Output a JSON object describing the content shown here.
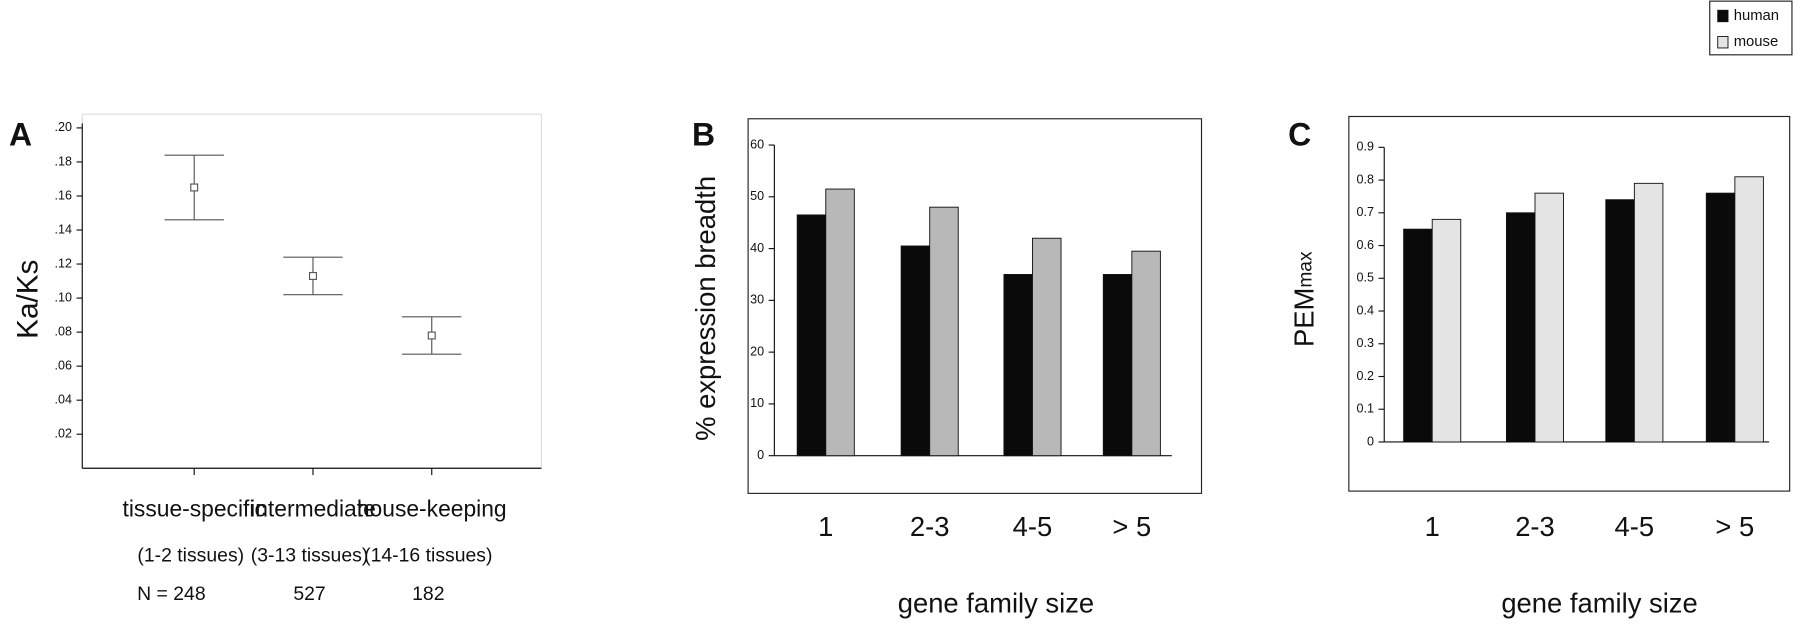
{
  "chart_data": [
    {
      "type": "errorbar",
      "panel": "A",
      "ylabel": "Ka/Ks",
      "categories": [
        "tissue-specific",
        "intermediate",
        "house-keeping"
      ],
      "category_notes": [
        "(1-2 tissues)",
        "(3-13 tissues)",
        "(14-16 tissues)"
      ],
      "n_labels": [
        "N = 248",
        "527",
        "182"
      ],
      "values": [
        0.165,
        0.113,
        0.078
      ],
      "errors": [
        0.019,
        0.011,
        0.011
      ],
      "color": "#555555",
      "ylim": [
        0,
        0.2
      ],
      "yticks": [
        {
          "value": 0.02,
          "label": ".02"
        },
        {
          "value": 0.04,
          "label": ".04"
        },
        {
          "value": 0.06,
          "label": ".06"
        },
        {
          "value": 0.08,
          "label": ".08"
        },
        {
          "value": 0.1,
          "label": ".10"
        },
        {
          "value": 0.12,
          "label": ".12"
        },
        {
          "value": 0.14,
          "label": ".14"
        },
        {
          "value": 0.16,
          "label": ".16"
        },
        {
          "value": 0.18,
          "label": ".18"
        },
        {
          "value": 0.2,
          "label": ".20"
        }
      ]
    },
    {
      "type": "bar",
      "panel": "B",
      "ylabel": "% expression breadth",
      "xlabel": "gene family size",
      "categories": [
        "1",
        "2-3",
        "4-5",
        "> 5"
      ],
      "series": [
        {
          "name": "human",
          "color": "#0a0a0a",
          "values": [
            46.5,
            40.5,
            35,
            35
          ]
        },
        {
          "name": "mouse",
          "color": "#b8b8b8",
          "values": [
            51.5,
            48,
            42,
            39.5
          ]
        }
      ],
      "ylim": [
        0,
        60
      ],
      "yticks": [
        0,
        10,
        20,
        30,
        40,
        50,
        60
      ]
    },
    {
      "type": "bar",
      "panel": "C",
      "ylabel": "PEM",
      "ylabel_sub": "max",
      "xlabel": "gene family size",
      "categories": [
        "1",
        "2-3",
        "4-5",
        "> 5"
      ],
      "series": [
        {
          "name": "human",
          "color": "#0a0a0a",
          "values": [
            0.65,
            0.7,
            0.74,
            0.76
          ]
        },
        {
          "name": "mouse",
          "color": "#e4e4e4",
          "values": [
            0.68,
            0.76,
            0.79,
            0.81
          ]
        }
      ],
      "ylim": [
        0,
        0.9
      ],
      "yticks": [
        0,
        0.1,
        0.2,
        0.3,
        0.4,
        0.5,
        0.6,
        0.7,
        0.8,
        0.9
      ],
      "legend": "top-right"
    }
  ]
}
